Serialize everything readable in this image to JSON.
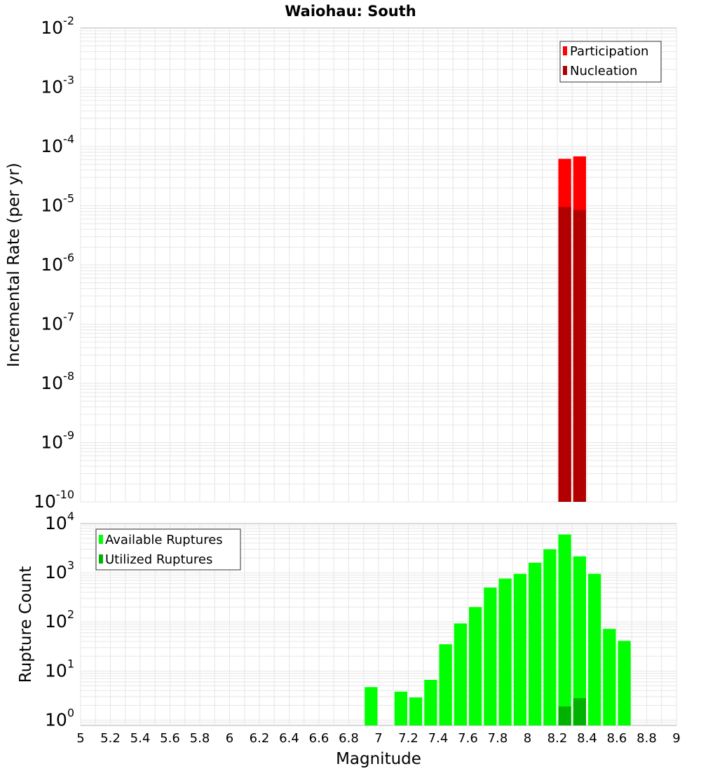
{
  "title": "Waiohau: South",
  "colors": {
    "participation": "#ff0000",
    "nucleation": "#b20000",
    "available": "#00ff00",
    "utilized": "#00b200",
    "grid": "#e6e6e6",
    "frame": "#b3b3b3"
  },
  "chart_data": [
    {
      "type": "bar",
      "title": "Waiohau: South",
      "ylabel": "Incremental Rate (per yr)",
      "xlabel": "",
      "yscale": "log",
      "ylim": [
        1e-10,
        0.01
      ],
      "xlim": [
        5,
        9
      ],
      "y_exponents": [
        -10,
        -9,
        -8,
        -7,
        -6,
        -5,
        -4,
        -3,
        -2
      ],
      "legend": "top-right",
      "series": [
        {
          "name": "Participation",
          "color": "#ff0000",
          "bars": [
            {
              "x": 8.25,
              "y": 6.2e-05
            },
            {
              "x": 8.35,
              "y": 6.8e-05
            }
          ]
        },
        {
          "name": "Nucleation",
          "color": "#b20000",
          "bars": [
            {
              "x": 8.25,
              "y": 9.5e-06
            },
            {
              "x": 8.35,
              "y": 8.5e-06
            }
          ]
        }
      ]
    },
    {
      "type": "bar",
      "ylabel": "Rupture Count",
      "xlabel": "Magnitude",
      "yscale": "log",
      "ylim": [
        0.78,
        10000
      ],
      "xlim": [
        5,
        9
      ],
      "y_exponents": [
        0,
        1,
        2,
        3,
        4
      ],
      "x_ticks": [
        "5",
        "5.2",
        "5.4",
        "5.6",
        "5.8",
        "6",
        "6.2",
        "6.4",
        "6.6",
        "6.8",
        "7",
        "7.2",
        "7.4",
        "7.6",
        "7.8",
        "8",
        "8.2",
        "8.4",
        "8.6",
        "8.8",
        "9"
      ],
      "legend": "top-left",
      "series": [
        {
          "name": "Available Ruptures",
          "color": "#00ff00",
          "bars": [
            {
              "x": 6.95,
              "y": 4.7
            },
            {
              "x": 7.15,
              "y": 3.8
            },
            {
              "x": 7.25,
              "y": 2.9
            },
            {
              "x": 7.35,
              "y": 6.6
            },
            {
              "x": 7.45,
              "y": 35
            },
            {
              "x": 7.55,
              "y": 93
            },
            {
              "x": 7.65,
              "y": 200
            },
            {
              "x": 7.75,
              "y": 500
            },
            {
              "x": 7.85,
              "y": 760
            },
            {
              "x": 7.95,
              "y": 950
            },
            {
              "x": 8.05,
              "y": 1600
            },
            {
              "x": 8.15,
              "y": 3000
            },
            {
              "x": 8.25,
              "y": 6000
            },
            {
              "x": 8.35,
              "y": 2150
            },
            {
              "x": 8.45,
              "y": 950
            },
            {
              "x": 8.55,
              "y": 72
            },
            {
              "x": 8.65,
              "y": 41
            }
          ]
        },
        {
          "name": "Utilized Ruptures",
          "color": "#00b200",
          "bars": [
            {
              "x": 8.25,
              "y": 1.9
            },
            {
              "x": 8.35,
              "y": 2.8
            }
          ]
        }
      ]
    }
  ]
}
